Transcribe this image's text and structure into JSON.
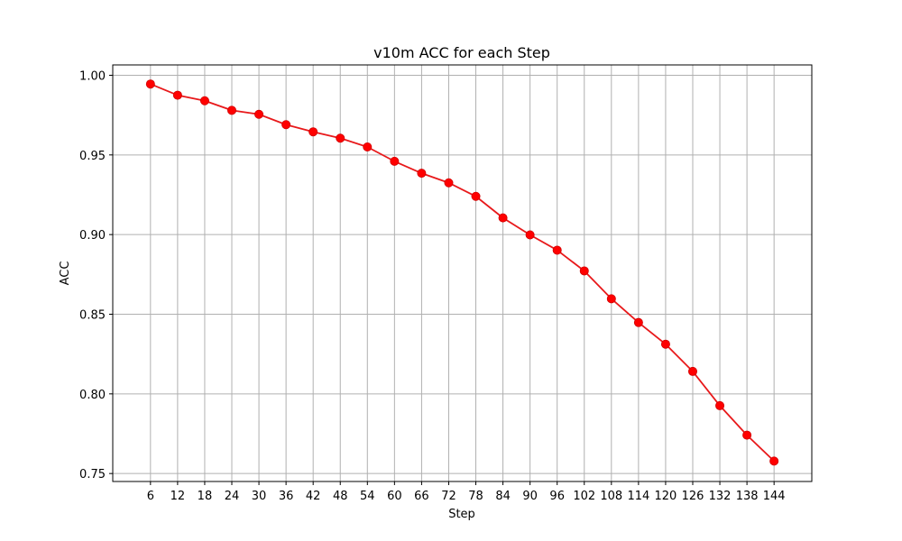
{
  "chart_data": {
    "type": "line",
    "title": "v10m ACC for each Step",
    "xlabel": "Step",
    "ylabel": "ACC",
    "x": [
      6,
      12,
      18,
      24,
      30,
      36,
      42,
      48,
      54,
      60,
      66,
      72,
      78,
      84,
      90,
      96,
      102,
      108,
      114,
      120,
      126,
      132,
      138,
      144
    ],
    "series": [
      {
        "values": [
          0.9945,
          0.9875,
          0.984,
          0.978,
          0.9755,
          0.969,
          0.9645,
          0.9605,
          0.955,
          0.946,
          0.9385,
          0.9325,
          0.924,
          0.9105,
          0.8998,
          0.8902,
          0.8772,
          0.8597,
          0.8448,
          0.8312,
          0.8141,
          0.7926,
          0.7741,
          0.7578
        ]
      }
    ],
    "ylim": [
      0.745,
      1.0065
    ],
    "yticks": [
      "0.75",
      "0.80",
      "0.85",
      "0.90",
      "0.95",
      "1.00"
    ],
    "grid": true,
    "line_color": "#e8191b",
    "marker_color": "#ff0000"
  }
}
